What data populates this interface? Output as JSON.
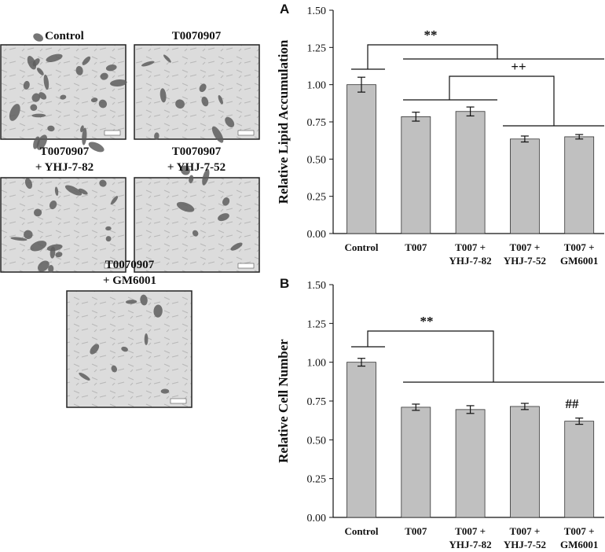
{
  "images": [
    {
      "label": "Control"
    },
    {
      "label": "T0070907"
    },
    {
      "label": "T0070907\n+ YHJ-7-82"
    },
    {
      "label": "T0070907\n+ YHJ-7-52"
    },
    {
      "label": "T0070907\n+ GM6001"
    }
  ],
  "chart_data": [
    {
      "type": "bar",
      "panel": "A",
      "ylabel": "Relative Lipid Accumulation",
      "categories": [
        "Control",
        "T007",
        "T007 +\nYHJ-7-82",
        "T007 +\nYHJ-7-52",
        "T007 +\nGM6001"
      ],
      "series": [
        {
          "color": "#c0c0c0",
          "values": [
            1.0,
            0.785,
            0.82,
            0.635,
            0.65
          ],
          "errors": [
            0.05,
            0.03,
            0.03,
            0.02,
            0.015
          ]
        }
      ],
      "ylim": [
        0,
        1.5
      ],
      "yticks": [
        {
          "value": 0,
          "label": "0.00"
        },
        {
          "value": 0.25,
          "label": "0.25"
        },
        {
          "value": 0.5,
          "label": "0.50"
        },
        {
          "value": 0.75,
          "label": "0.75"
        },
        {
          "value": 1,
          "label": "1.00"
        },
        {
          "value": 1.25,
          "label": "1.25"
        },
        {
          "value": 1.5,
          "label": "1.50"
        }
      ],
      "annotations": [
        {
          "text": "**"
        },
        {
          "text": "++"
        }
      ]
    },
    {
      "type": "bar",
      "panel": "B",
      "ylabel": "Relative Cell Number",
      "categories": [
        "Control",
        "T007",
        "T007 +\nYHJ-7-82",
        "T007 +\nYHJ-7-52",
        "T007 +\nGM6001"
      ],
      "series": [
        {
          "color": "#c0c0c0",
          "values": [
            1.0,
            0.71,
            0.695,
            0.715,
            0.62
          ],
          "errors": [
            0.025,
            0.02,
            0.025,
            0.02,
            0.02
          ]
        }
      ],
      "ylim": [
        0,
        1.5
      ],
      "yticks": [
        {
          "value": 0,
          "label": "0.00"
        },
        {
          "value": 0.25,
          "label": "0.25"
        },
        {
          "value": 0.5,
          "label": "0.50"
        },
        {
          "value": 0.75,
          "label": "0.75"
        },
        {
          "value": 1,
          "label": "1.00"
        },
        {
          "value": 1.25,
          "label": "1.25"
        },
        {
          "value": 1.5,
          "label": "1.50"
        }
      ],
      "annotations": [
        {
          "text": "**"
        },
        {
          "text": "##"
        }
      ]
    }
  ]
}
